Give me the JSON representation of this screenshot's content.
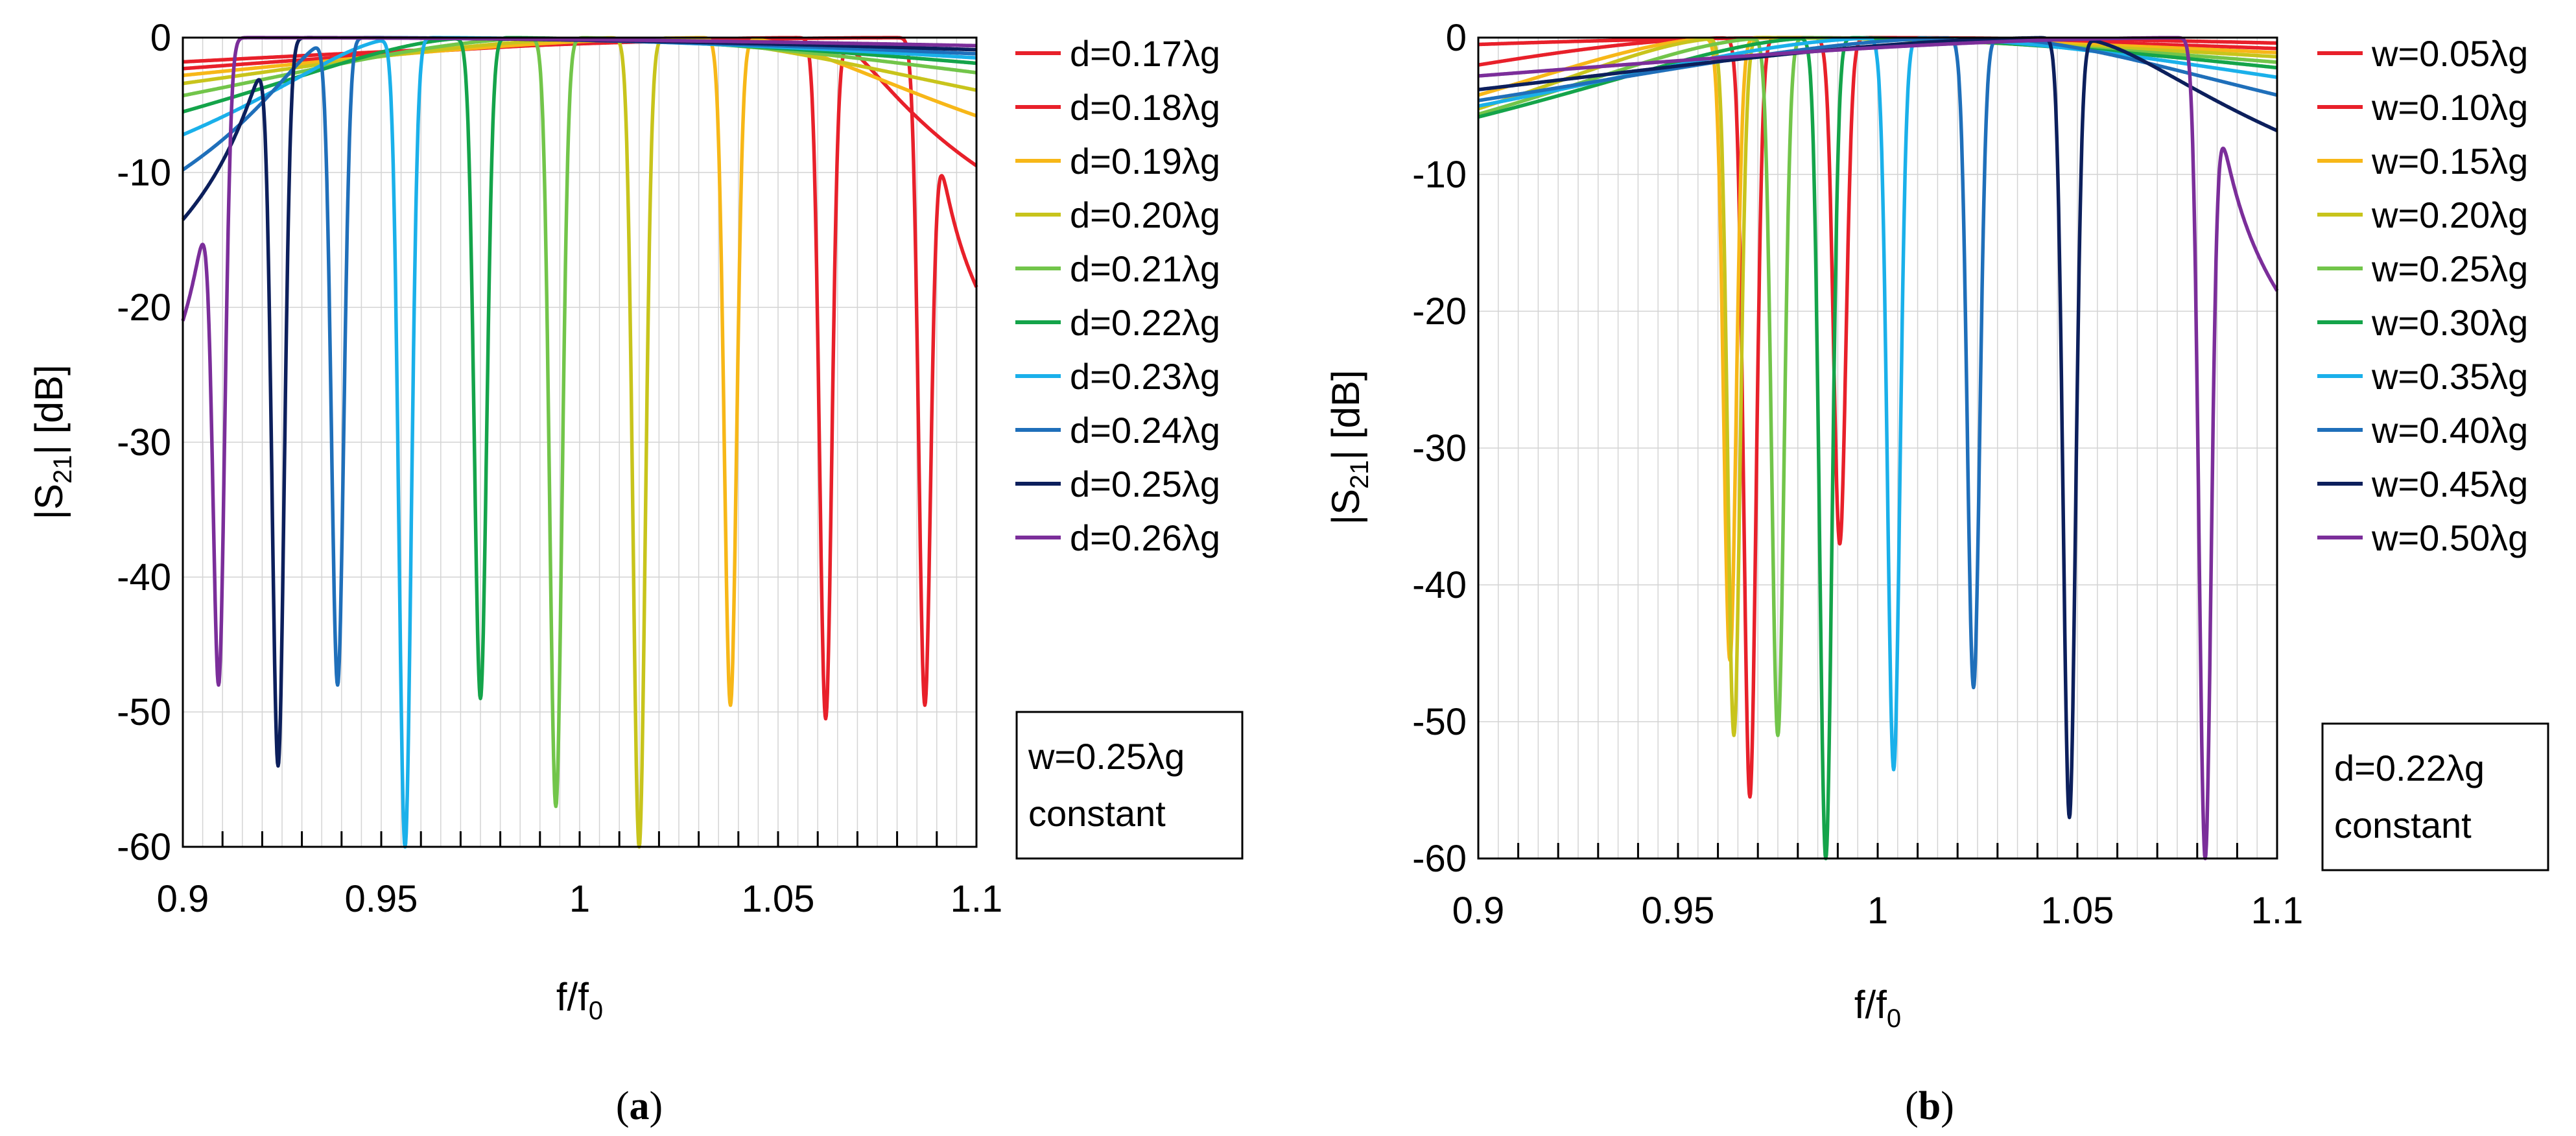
{
  "chart_data": [
    {
      "type": "line",
      "panel_label": "(a)",
      "panel_letter": "a",
      "xlabel": "f/f0",
      "xlabel_base": "f/f",
      "xlabel_sub": "0",
      "ylabel": "|S21| [dB]",
      "ylabel_pre": "|S",
      "ylabel_sub": "21",
      "ylabel_post": "| [dB]",
      "xlim": [
        0.9,
        1.1
      ],
      "ylim": [
        -60,
        0
      ],
      "x_ticks": [
        "0.9",
        "0.95",
        "1",
        "1.05",
        "1.1"
      ],
      "y_ticks": [
        "0",
        "-10",
        "-20",
        "-30",
        "-40",
        "-50",
        "-60"
      ],
      "grid": true,
      "legend_position": "right",
      "annotation": [
        "w=0.25λg",
        "constant"
      ],
      "series": [
        {
          "name": "d=0.17λg",
          "color": "#e8202a",
          "notch_x": 1.087,
          "notch_y": -49.5,
          "y_at_0_9": -1.8,
          "y_at_1_1": -18.5
        },
        {
          "name": "d=0.18λg",
          "color": "#e8202a",
          "notch_x": 1.062,
          "notch_y": -50.5,
          "y_at_0_9": -2.3,
          "y_at_1_1": -9.5
        },
        {
          "name": "d=0.19λg",
          "color": "#f7b718",
          "notch_x": 1.038,
          "notch_y": -49.5,
          "y_at_0_9": -2.8,
          "y_at_1_1": -5.8
        },
        {
          "name": "d=0.20λg",
          "color": "#c8c41c",
          "notch_x": 1.015,
          "notch_y": -60,
          "y_at_0_9": -3.4,
          "y_at_1_1": -3.9
        },
        {
          "name": "d=0.21λg",
          "color": "#72c54a",
          "notch_x": 0.994,
          "notch_y": -57,
          "y_at_0_9": -4.3,
          "y_at_1_1": -2.6
        },
        {
          "name": "d=0.22λg",
          "color": "#14a44a",
          "notch_x": 0.975,
          "notch_y": -49,
          "y_at_0_9": -5.5,
          "y_at_1_1": -1.9
        },
        {
          "name": "d=0.23λg",
          "color": "#1ab0ea",
          "notch_x": 0.956,
          "notch_y": -60,
          "y_at_0_9": -7.2,
          "y_at_1_1": -1.5
        },
        {
          "name": "d=0.24λg",
          "color": "#1f6fba",
          "notch_x": 0.939,
          "notch_y": -48,
          "y_at_0_9": -9.8,
          "y_at_1_1": -1.2
        },
        {
          "name": "d=0.25λg",
          "color": "#0c1f5c",
          "notch_x": 0.924,
          "notch_y": -54,
          "y_at_0_9": -13.5,
          "y_at_1_1": -0.9
        },
        {
          "name": "d=0.26λg",
          "color": "#7b2e9a",
          "notch_x": 0.909,
          "notch_y": -48,
          "y_at_0_9": -21,
          "y_at_1_1": -0.6
        }
      ]
    },
    {
      "type": "line",
      "panel_label": "(b)",
      "panel_letter": "b",
      "xlabel": "f/f0",
      "xlabel_base": "f/f",
      "xlabel_sub": "0",
      "ylabel": "|S21| [dB]",
      "ylabel_pre": "|S",
      "ylabel_sub": "21",
      "ylabel_post": "| [dB]",
      "xlim": [
        0.9,
        1.1
      ],
      "ylim": [
        -60,
        0
      ],
      "x_ticks": [
        "0.9",
        "0.95",
        "1",
        "1.05",
        "1.1"
      ],
      "y_ticks": [
        "0",
        "-10",
        "-20",
        "-30",
        "-40",
        "-50",
        "-60"
      ],
      "grid": true,
      "legend_position": "right",
      "annotation": [
        "d=0.22λg",
        "constant"
      ],
      "series": [
        {
          "name": "w=0.05λg",
          "color": "#e8202a",
          "notch_x": 0.9905,
          "notch_y": -37,
          "y_at_0_9": -0.5,
          "y_at_1_1": -0.4
        },
        {
          "name": "w=0.10λg",
          "color": "#e8202a",
          "notch_x": 0.968,
          "notch_y": -55.5,
          "y_at_0_9": -2.0,
          "y_at_1_1": -0.8
        },
        {
          "name": "w=0.15λg",
          "color": "#f7b718",
          "notch_x": 0.963,
          "notch_y": -45.5,
          "y_at_0_9": -4.2,
          "y_at_1_1": -1.1
        },
        {
          "name": "w=0.20λg",
          "color": "#c8c41c",
          "notch_x": 0.964,
          "notch_y": -51,
          "y_at_0_9": -5.2,
          "y_at_1_1": -1.4
        },
        {
          "name": "w=0.25λg",
          "color": "#72c54a",
          "notch_x": 0.975,
          "notch_y": -51,
          "y_at_0_9": -5.6,
          "y_at_1_1": -1.8
        },
        {
          "name": "w=0.30λg",
          "color": "#14a44a",
          "notch_x": 0.987,
          "notch_y": -60,
          "y_at_0_9": -5.8,
          "y_at_1_1": -2.2
        },
        {
          "name": "w=0.35λg",
          "color": "#1ab0ea",
          "notch_x": 1.004,
          "notch_y": -53.5,
          "y_at_0_9": -5.0,
          "y_at_1_1": -2.9
        },
        {
          "name": "w=0.40λg",
          "color": "#1f6fba",
          "notch_x": 1.024,
          "notch_y": -47.5,
          "y_at_0_9": -4.6,
          "y_at_1_1": -4.2
        },
        {
          "name": "w=0.45λg",
          "color": "#0c1f5c",
          "notch_x": 1.048,
          "notch_y": -57,
          "y_at_0_9": -3.8,
          "y_at_1_1": -6.8
        },
        {
          "name": "w=0.50λg",
          "color": "#7b2e9a",
          "notch_x": 1.082,
          "notch_y": -60,
          "y_at_0_9": -2.8,
          "y_at_1_1": -18.5
        }
      ]
    }
  ]
}
